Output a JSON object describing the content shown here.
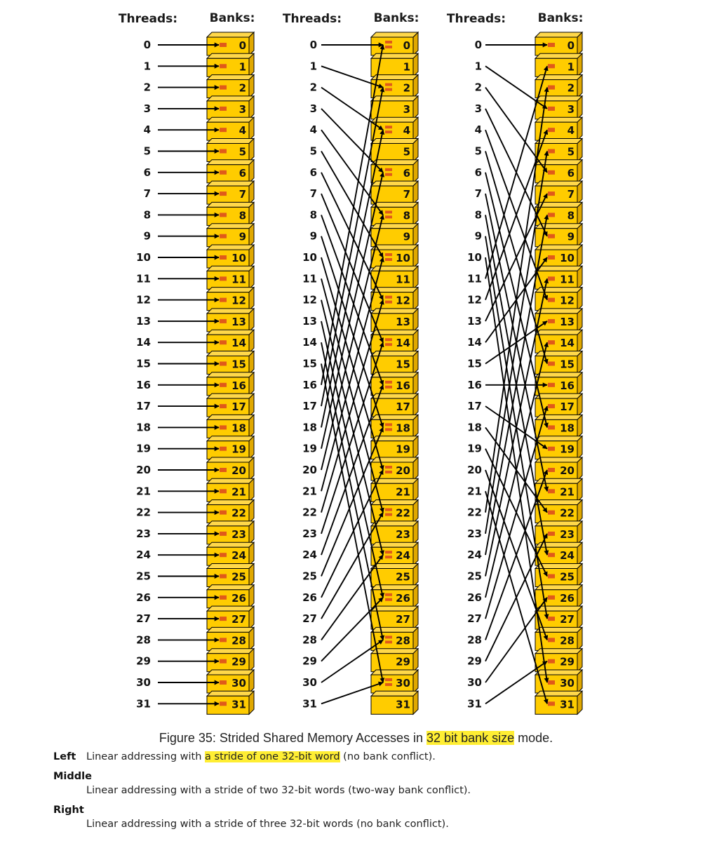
{
  "diagram": {
    "panels": [
      {
        "id": "left",
        "threads_header": "Threads:",
        "banks_header": "Banks:",
        "stride": 1
      },
      {
        "id": "middle",
        "threads_header": "Threads:",
        "banks_header": "Banks:",
        "stride": 2
      },
      {
        "id": "right",
        "threads_header": "Threads:",
        "banks_header": "Banks:",
        "stride": 3
      }
    ],
    "thread_ids": [
      0,
      1,
      2,
      3,
      4,
      5,
      6,
      7,
      8,
      9,
      10,
      11,
      12,
      13,
      14,
      15,
      16,
      17,
      18,
      19,
      20,
      21,
      22,
      23,
      24,
      25,
      26,
      27,
      28,
      29,
      30,
      31
    ],
    "bank_ids": [
      0,
      1,
      2,
      3,
      4,
      5,
      6,
      7,
      8,
      9,
      10,
      11,
      12,
      13,
      14,
      15,
      16,
      17,
      18,
      19,
      20,
      21,
      22,
      23,
      24,
      25,
      26,
      27,
      28,
      29,
      30,
      31
    ],
    "colors": {
      "bank_fill": "#ffcc00",
      "bank_side": "#e0a800",
      "bank_top": "#ffd84a",
      "marker": "#e05a1a",
      "arrow": "#000000"
    }
  },
  "caption": {
    "prefix": "Figure 35: Strided Shared Memory Accesses in ",
    "highlight": "32 bit bank size",
    "suffix": " mode."
  },
  "definitions": {
    "left": {
      "term": "Left",
      "desc_prefix": "Linear addressing with ",
      "desc_highlight": "a stride of one 32-bit word",
      "desc_suffix": " (no bank conflict)."
    },
    "middle": {
      "term": "Middle",
      "desc": "Linear addressing with a stride of two 32-bit words (two-way bank conflict)."
    },
    "right": {
      "term": "Right",
      "desc": "Linear addressing with a stride of three 32-bit words (no bank conflict)."
    }
  }
}
